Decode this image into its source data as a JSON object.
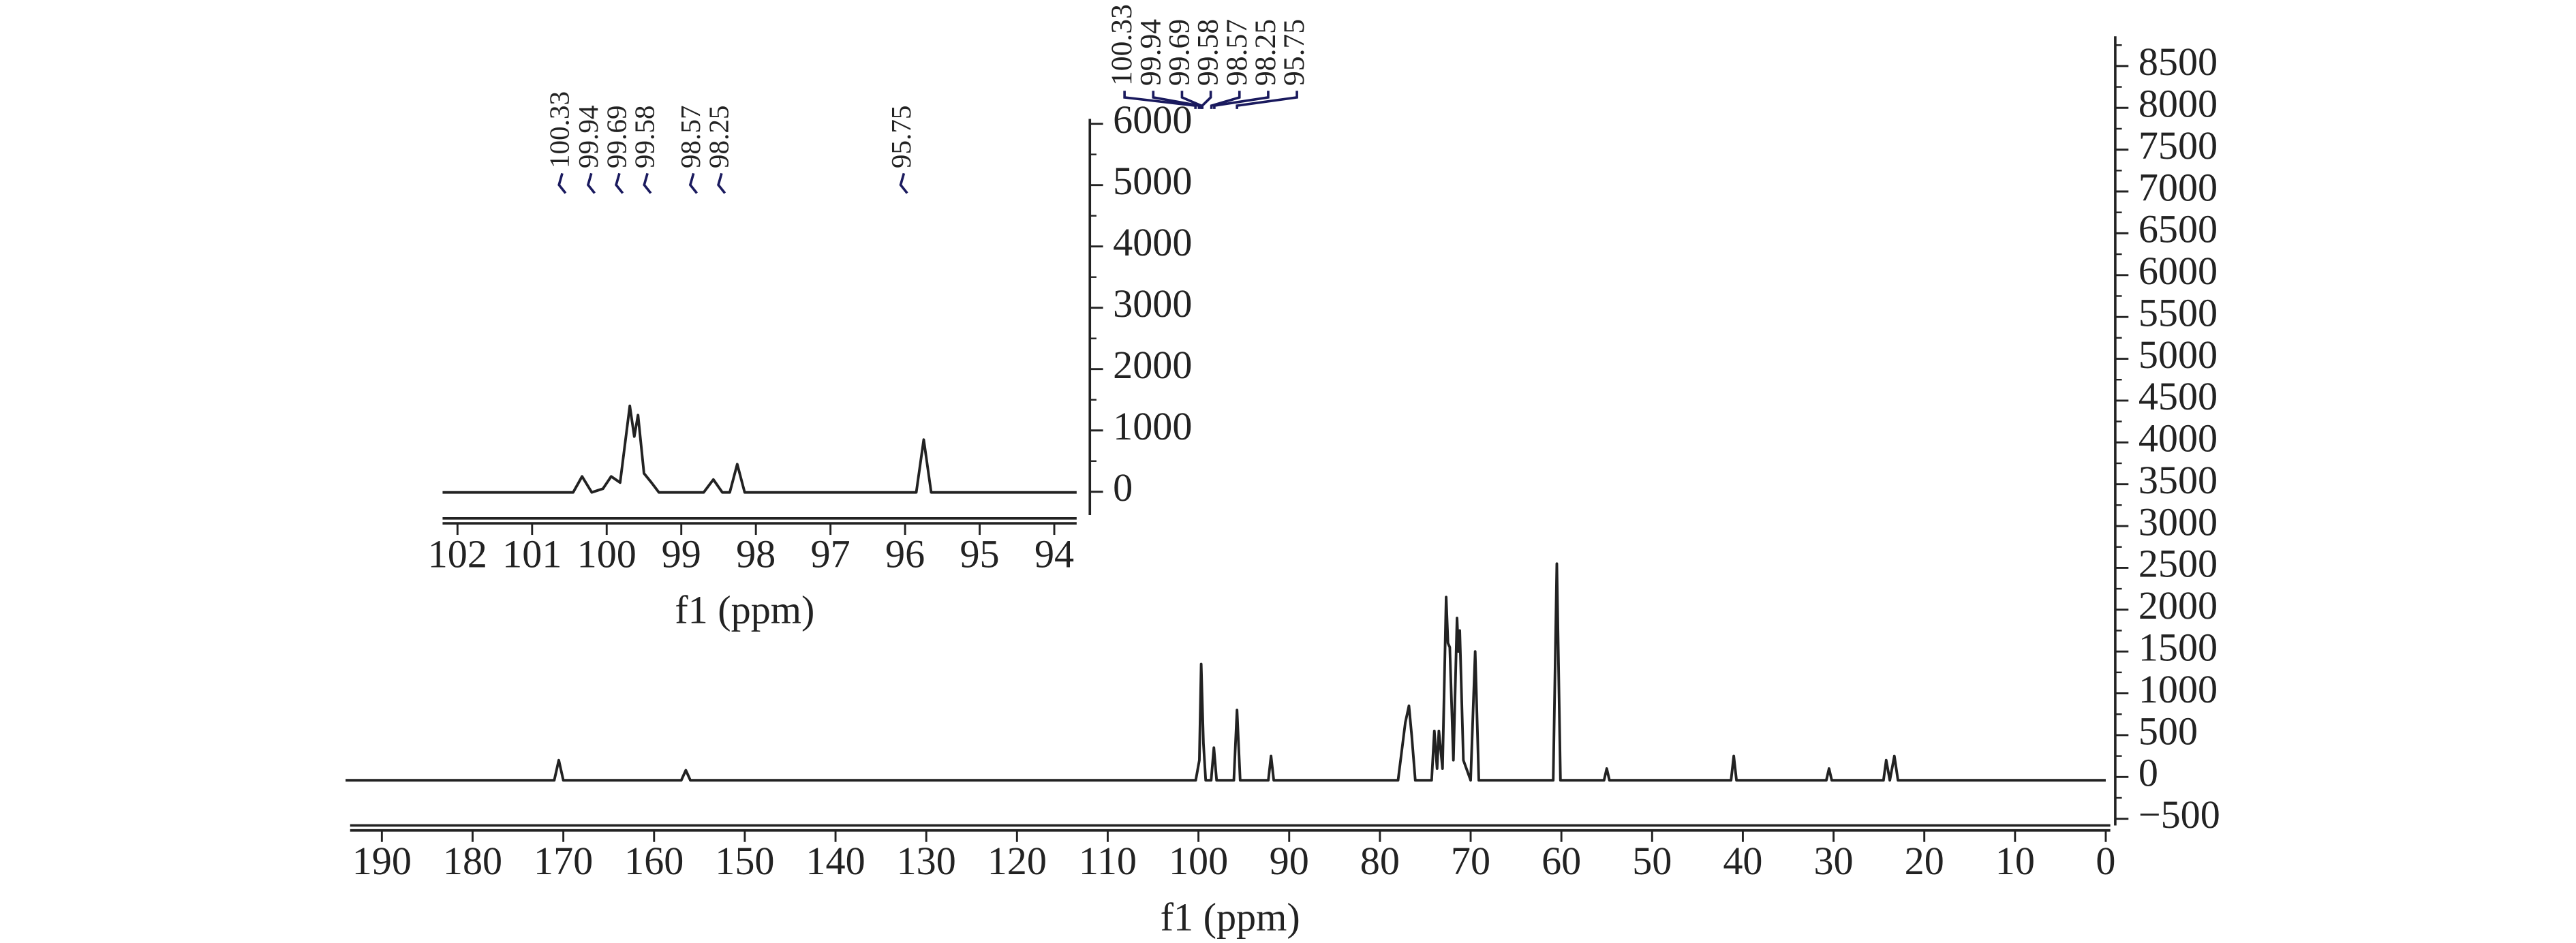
{
  "chart_data": [
    {
      "type": "line",
      "xlabel": "f1 (ppm)",
      "color": "#222222",
      "xlim": [
        193.5,
        -0.5
      ],
      "ylim": [
        -580,
        8855
      ],
      "xticks": [
        190,
        180,
        170,
        160,
        150,
        140,
        130,
        120,
        110,
        100,
        90,
        80,
        70,
        60,
        50,
        40,
        30,
        20,
        10,
        0
      ],
      "yticks": [
        {
          "value": -500,
          "label": "−500"
        },
        0,
        500,
        1000,
        1500,
        2000,
        2500,
        3000,
        3500,
        4000,
        4500,
        5000,
        5500,
        6000,
        6500,
        7000,
        7500,
        8000,
        8500
      ],
      "peak_labels": [
        100.33,
        99.94,
        99.69,
        99.58,
        98.57,
        98.25,
        95.75
      ],
      "x": [
        194,
        171,
        170.5,
        170,
        157,
        156.5,
        156,
        100.3,
        99.9,
        99.7,
        99.45,
        99.2,
        98.6,
        98.3,
        98.0,
        96.1,
        95.75,
        95.4,
        92.3,
        92,
        91.7,
        78,
        77.2,
        76.8,
        76.5,
        76.1,
        74.3,
        74,
        73.7,
        73.5,
        73.1,
        72.7,
        72.5,
        72.3,
        71.9,
        71.5,
        71.35,
        71.2,
        70.8,
        70,
        69.5,
        69.1,
        60.9,
        60.5,
        60.1,
        55.3,
        55,
        54.7,
        41.3,
        41,
        40.7,
        30.8,
        30.5,
        30.2,
        24.5,
        24.2,
        23.8,
        23.3,
        22.9,
        0
      ],
      "values": [
        -40,
        -40,
        200,
        -40,
        -40,
        80,
        -40,
        -40,
        200,
        1350,
        400,
        -40,
        -40,
        350,
        -40,
        -40,
        800,
        -40,
        -40,
        250,
        -40,
        -40,
        650,
        850,
        500,
        -40,
        -40,
        550,
        100,
        550,
        100,
        2150,
        1600,
        1550,
        200,
        1900,
        1500,
        1750,
        200,
        -40,
        1500,
        -40,
        -40,
        2550,
        -40,
        -40,
        100,
        -40,
        -40,
        250,
        -40,
        -40,
        100,
        -40,
        -40,
        200,
        -40,
        250,
        -40,
        -40
      ]
    },
    {
      "type": "line",
      "xlabel": "f1 (ppm)",
      "color": "#222222",
      "xlim": [
        102.2,
        93.7
      ],
      "ylim": [
        -380,
        6080
      ],
      "xticks": [
        102,
        101,
        100,
        99,
        98,
        97,
        96,
        95,
        94
      ],
      "yticks": [
        0,
        1000,
        2000,
        3000,
        4000,
        5000,
        6000
      ],
      "peak_labels": [
        100.33,
        99.94,
        99.69,
        99.58,
        98.57,
        98.25,
        95.75
      ],
      "x": [
        102.2,
        100.45,
        100.33,
        100.2,
        100.05,
        99.94,
        99.82,
        99.69,
        99.63,
        99.58,
        99.5,
        99.4,
        99.3,
        98.7,
        98.57,
        98.45,
        98.35,
        98.25,
        98.15,
        95.85,
        95.75,
        95.65,
        93.7
      ],
      "values": [
        -10,
        -10,
        250,
        -10,
        50,
        250,
        150,
        1400,
        900,
        1250,
        300,
        150,
        -10,
        -10,
        200,
        -10,
        -10,
        450,
        -10,
        -10,
        850,
        -10,
        -10
      ]
    }
  ]
}
